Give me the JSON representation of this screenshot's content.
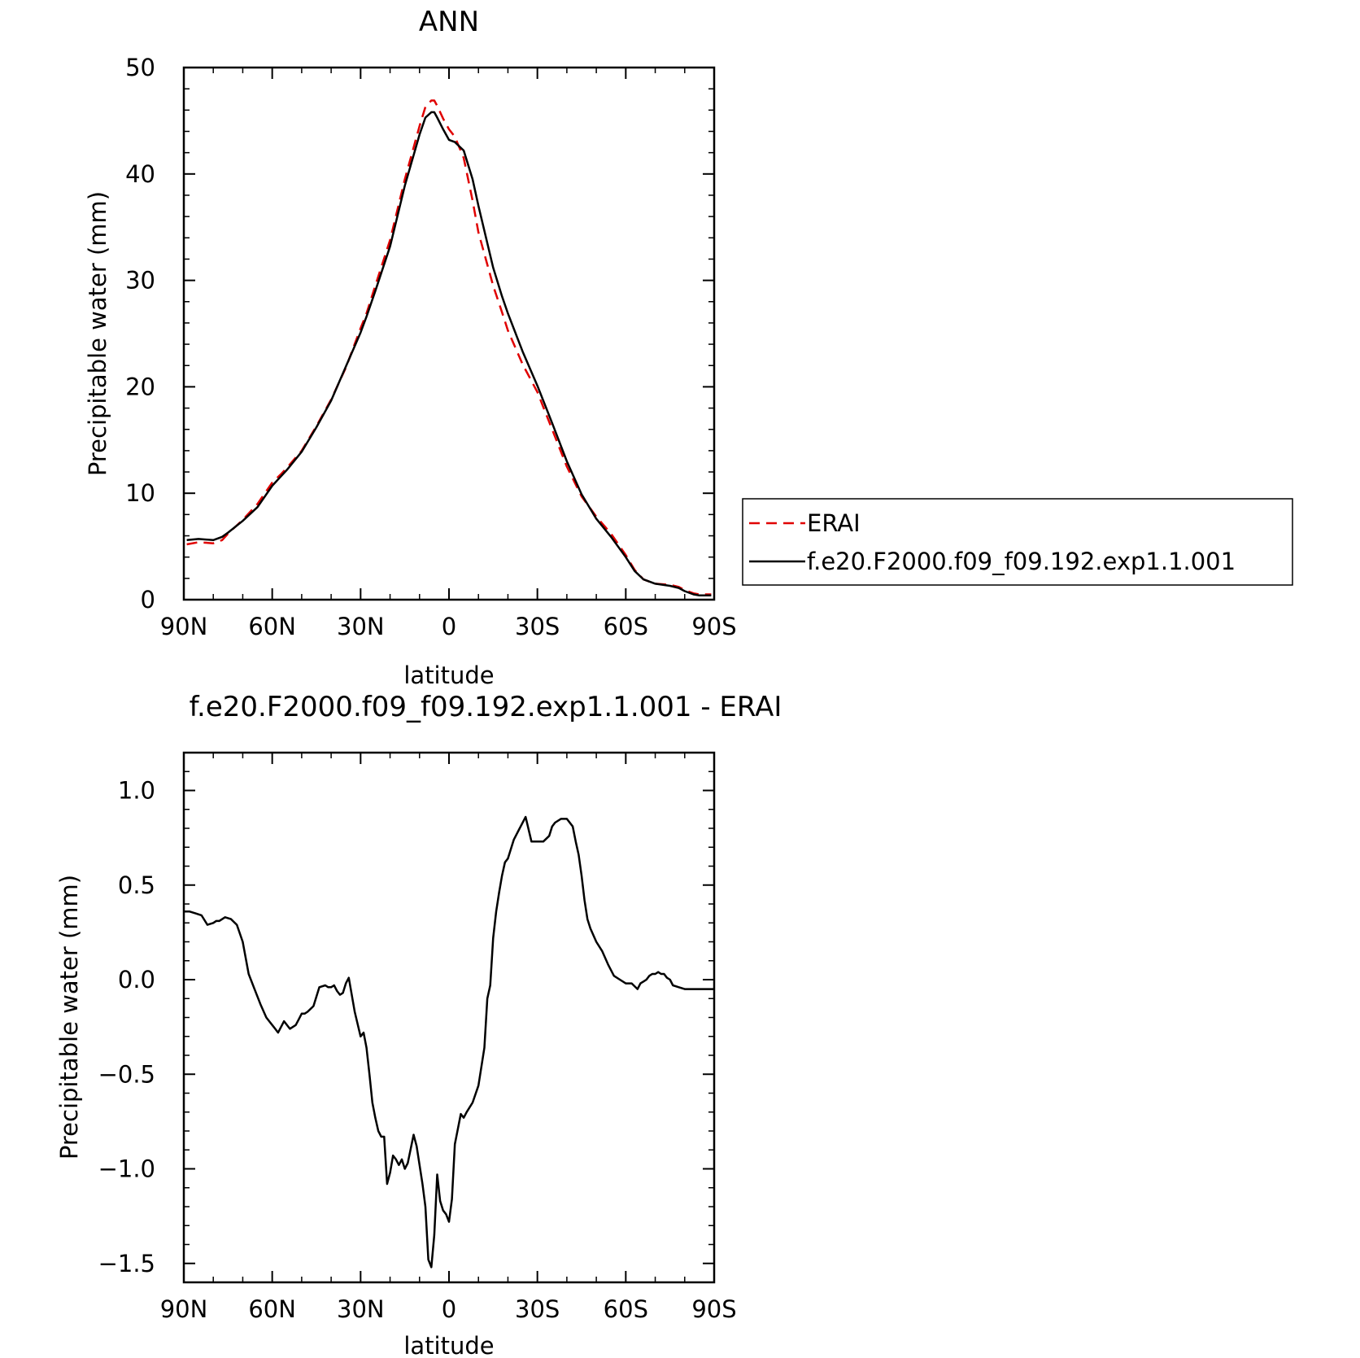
{
  "chart_data": [
    {
      "type": "line",
      "title": "ANN",
      "xlabel": "latitude",
      "ylabel": "Precipitable water (mm)",
      "xlim": [
        90,
        -90
      ],
      "ylim": [
        0,
        50
      ],
      "x_ticks": [
        90,
        60,
        30,
        0,
        -30,
        -60,
        -90
      ],
      "x_tick_labels": [
        "90N",
        "60N",
        "30N",
        "0",
        "30S",
        "60S",
        "90S"
      ],
      "y_ticks": [
        0,
        10,
        20,
        30,
        40,
        50
      ],
      "y_tick_labels": [
        "0",
        "10",
        "20",
        "30",
        "40",
        "50"
      ],
      "legend": "right",
      "grid": false,
      "series": [
        {
          "name": "ERAI",
          "color": "#e00000",
          "dash": "dashed",
          "x": [
            89,
            85,
            80,
            77,
            75,
            70,
            65,
            60,
            57,
            55,
            50,
            45,
            40,
            35,
            30,
            28,
            25,
            20,
            15,
            10,
            8,
            6,
            5,
            4,
            2,
            0,
            -2,
            -5,
            -8,
            -10,
            -15,
            -18,
            -20,
            -25,
            -30,
            -35,
            -40,
            -45,
            -50,
            -55,
            -60,
            -63,
            -66,
            -70,
            -75,
            -78,
            -80,
            -83,
            -85,
            -87,
            -89
          ],
          "y": [
            5.2,
            5.4,
            5.3,
            5.6,
            6.2,
            7.5,
            9.0,
            11.0,
            11.8,
            12.4,
            14.0,
            16.3,
            18.8,
            21.8,
            25.5,
            26.9,
            29.5,
            33.8,
            39.5,
            44.5,
            46.3,
            46.9,
            46.9,
            46.4,
            45.2,
            44.2,
            43.5,
            41.5,
            37.5,
            34.5,
            29.5,
            27.0,
            25.3,
            22.1,
            19.5,
            16.0,
            12.5,
            9.7,
            7.8,
            6.2,
            4.2,
            2.8,
            1.9,
            1.5,
            1.4,
            1.2,
            0.9,
            0.6,
            0.5,
            0.5,
            0.5
          ]
        },
        {
          "name": "f.e20.F2000.f09_f09.192.exp1.1.001",
          "color": "#000000",
          "dash": "solid",
          "x": [
            89,
            85,
            80,
            77,
            75,
            70,
            65,
            60,
            57,
            55,
            50,
            45,
            40,
            35,
            30,
            28,
            25,
            20,
            15,
            10,
            8,
            6,
            5,
            4,
            2,
            0,
            -2,
            -5,
            -8,
            -10,
            -15,
            -18,
            -20,
            -25,
            -30,
            -35,
            -40,
            -45,
            -50,
            -55,
            -60,
            -63,
            -66,
            -70,
            -75,
            -78,
            -80,
            -83,
            -85,
            -87,
            -89
          ],
          "y": [
            5.6,
            5.7,
            5.6,
            5.9,
            6.3,
            7.4,
            8.7,
            10.7,
            11.6,
            12.2,
            13.9,
            16.2,
            18.7,
            21.9,
            25.1,
            26.6,
            29.0,
            33.2,
            38.9,
            43.7,
            45.3,
            45.8,
            45.8,
            45.3,
            44.2,
            43.2,
            43.0,
            42.2,
            39.5,
            37.0,
            31.2,
            28.5,
            26.9,
            23.3,
            20.1,
            16.6,
            13.0,
            9.9,
            7.6,
            5.9,
            4.0,
            2.7,
            1.9,
            1.5,
            1.3,
            1.1,
            0.8,
            0.5,
            0.4,
            0.4,
            0.4
          ]
        }
      ]
    },
    {
      "type": "line",
      "title": "f.e20.F2000.f09_f09.192.exp1.1.001 - ERAI",
      "xlabel": "latitude",
      "ylabel": "Precipitable water (mm)",
      "xlim": [
        90,
        -90
      ],
      "ylim": [
        -1.6,
        1.2
      ],
      "x_ticks": [
        90,
        60,
        30,
        0,
        -30,
        -60,
        -90
      ],
      "x_tick_labels": [
        "90N",
        "60N",
        "30N",
        "0",
        "30S",
        "60S",
        "90S"
      ],
      "y_ticks": [
        1.0,
        0.5,
        0.0,
        -0.5,
        -1.0,
        -1.5
      ],
      "y_tick_labels": [
        "1.0",
        "0.5",
        "0.0",
        "−0.5",
        "−1.0",
        "−1.5"
      ],
      "grid": false,
      "series": [
        {
          "color": "#000000",
          "dash": "solid",
          "x": [
            90,
            88,
            86,
            84,
            82,
            80,
            79,
            78,
            76,
            74,
            72,
            70,
            68,
            66,
            64,
            62,
            61,
            60,
            59,
            58,
            56,
            54,
            52,
            51,
            50,
            49,
            48,
            46,
            44,
            42,
            41,
            40,
            39,
            38,
            37,
            36,
            35,
            34,
            32,
            30,
            29,
            28,
            27,
            26,
            25,
            24,
            23,
            22,
            21,
            20,
            19,
            18,
            17,
            16,
            15,
            14,
            12,
            11,
            10,
            9,
            8,
            7,
            6,
            5,
            4,
            3,
            2,
            1,
            0,
            -1,
            -2,
            -4,
            -5,
            -6,
            -8,
            -10,
            -12,
            -13,
            -14,
            -15,
            -16,
            -17,
            -18,
            -19,
            -20,
            -22,
            -24,
            -26,
            -28,
            -30,
            -32,
            -34,
            -35,
            -36,
            -38,
            -40,
            -42,
            -43,
            -44,
            -45,
            -46,
            -47,
            -48,
            -50,
            -52,
            -54,
            -56,
            -58,
            -60,
            -62,
            -64,
            -65,
            -66,
            -67,
            -68,
            -69,
            -70,
            -71,
            -72,
            -73,
            -74,
            -75,
            -76,
            -78,
            -80,
            -82,
            -84,
            -86,
            -88,
            -90
          ],
          "y": [
            0.36,
            0.36,
            0.35,
            0.34,
            0.29,
            0.3,
            0.31,
            0.31,
            0.33,
            0.32,
            0.29,
            0.2,
            0.03,
            -0.05,
            -0.13,
            -0.2,
            -0.22,
            -0.24,
            -0.26,
            -0.28,
            -0.22,
            -0.26,
            -0.24,
            -0.21,
            -0.18,
            -0.18,
            -0.17,
            -0.14,
            -0.04,
            -0.03,
            -0.04,
            -0.04,
            -0.03,
            -0.06,
            -0.08,
            -0.07,
            -0.02,
            0.01,
            -0.17,
            -0.3,
            -0.28,
            -0.36,
            -0.5,
            -0.65,
            -0.73,
            -0.8,
            -0.83,
            -0.83,
            -1.08,
            -1.02,
            -0.93,
            -0.95,
            -0.98,
            -0.95,
            -1.0,
            -0.97,
            -0.82,
            -0.88,
            -0.98,
            -1.08,
            -1.2,
            -1.48,
            -1.52,
            -1.35,
            -1.03,
            -1.17,
            -1.22,
            -1.24,
            -1.28,
            -1.16,
            -0.87,
            -0.71,
            -0.73,
            -0.7,
            -0.65,
            -0.56,
            -0.36,
            -0.1,
            -0.03,
            0.22,
            0.36,
            0.46,
            0.55,
            0.62,
            0.64,
            0.74,
            0.8,
            0.86,
            0.73,
            0.73,
            0.73,
            0.76,
            0.81,
            0.83,
            0.85,
            0.85,
            0.81,
            0.73,
            0.66,
            0.55,
            0.42,
            0.32,
            0.27,
            0.2,
            0.15,
            0.08,
            0.02,
            0.0,
            -0.02,
            -0.02,
            -0.05,
            -0.02,
            -0.01,
            0.0,
            0.02,
            0.03,
            0.03,
            0.04,
            0.03,
            0.03,
            0.01,
            0.0,
            -0.03,
            -0.04,
            -0.05,
            -0.05,
            -0.05,
            -0.05,
            -0.05,
            -0.05
          ]
        }
      ]
    }
  ]
}
